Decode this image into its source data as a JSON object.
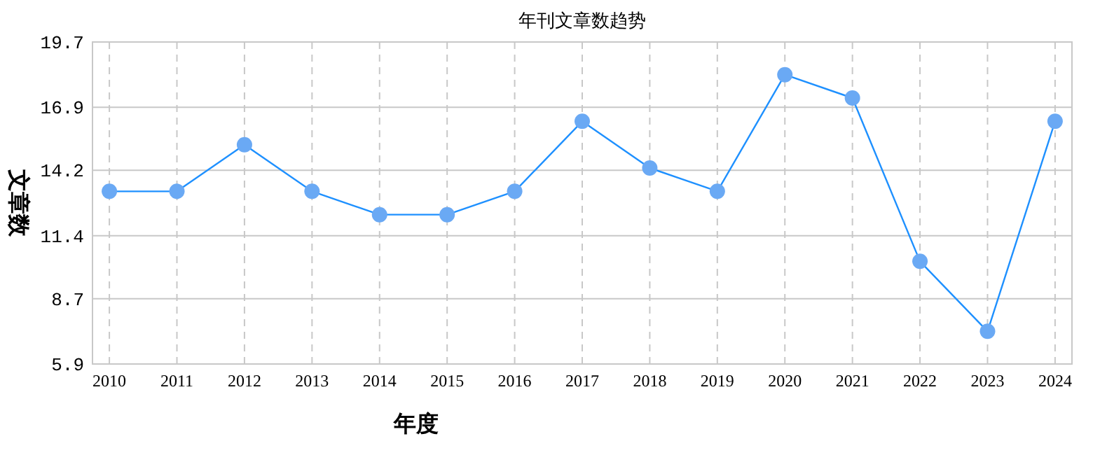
{
  "chart_data": {
    "type": "line",
    "title": "年刊文章数趋势",
    "xlabel": "年度",
    "ylabel": "文章数",
    "categories": [
      "2010",
      "2011",
      "2012",
      "2013",
      "2014",
      "2015",
      "2016",
      "2017",
      "2018",
      "2019",
      "2020",
      "2021",
      "2022",
      "2023",
      "2024"
    ],
    "series": [
      {
        "color": "#1e90ff",
        "values": [
          13.3,
          13.3,
          15.3,
          13.3,
          12.3,
          12.3,
          13.3,
          16.3,
          14.3,
          13.3,
          18.3,
          17.3,
          10.3,
          7.3,
          16.3
        ]
      }
    ],
    "ylim": [
      5.9,
      19.7
    ],
    "yticks": [
      5.9,
      8.7,
      11.4,
      14.2,
      16.9,
      19.7
    ],
    "grid": true,
    "marker": "circle"
  }
}
